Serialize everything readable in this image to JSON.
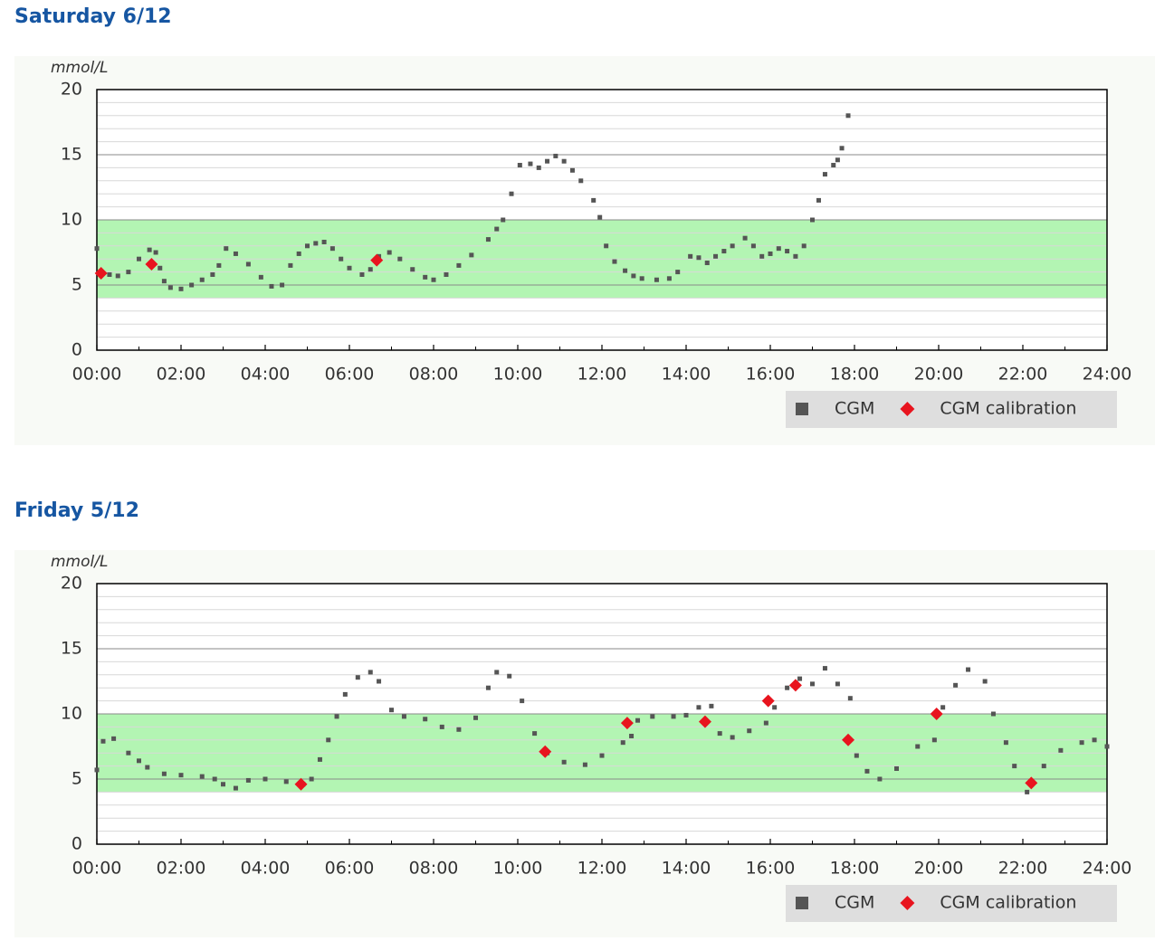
{
  "chart_data": [
    {
      "type": "scatter",
      "title": "Saturday 6/12",
      "y_label": "mmol/L",
      "xlim": [
        0,
        24
      ],
      "ylim": [
        0,
        20
      ],
      "xticks": [
        {
          "value": 0,
          "label": "00:00"
        },
        {
          "value": 2,
          "label": "02:00"
        },
        {
          "value": 4,
          "label": "04:00"
        },
        {
          "value": 6,
          "label": "06:00"
        },
        {
          "value": 8,
          "label": "08:00"
        },
        {
          "value": 10,
          "label": "10:00"
        },
        {
          "value": 12,
          "label": "12:00"
        },
        {
          "value": 14,
          "label": "14:00"
        },
        {
          "value": 16,
          "label": "16:00"
        },
        {
          "value": 18,
          "label": "18:00"
        },
        {
          "value": 20,
          "label": "20:00"
        },
        {
          "value": 22,
          "label": "22:00"
        },
        {
          "value": 24,
          "label": "24:00"
        }
      ],
      "yticks": [
        0,
        5,
        10,
        15,
        20
      ],
      "grid": true,
      "bands": [
        {
          "from": 4,
          "to": 10,
          "color": "#b3f5b3"
        }
      ],
      "legend": "bottom-right",
      "series": [
        {
          "name": "CGM",
          "color": "#555555",
          "marker": "square",
          "x": [
            0,
            0.1,
            0.3,
            0.5,
            0.75,
            1.0,
            1.25,
            1.4,
            1.5,
            1.6,
            1.75,
            2.0,
            2.25,
            2.5,
            2.75,
            2.9,
            3.07,
            3.3,
            3.6,
            3.9,
            4.15,
            4.4,
            4.6,
            4.8,
            5.0,
            5.2,
            5.4,
            5.6,
            5.8,
            6.0,
            6.3,
            6.5,
            6.7,
            6.95,
            7.2,
            7.5,
            7.8,
            8.0,
            8.3,
            8.6,
            8.9,
            9.3,
            9.5,
            9.65,
            9.85,
            10.05,
            10.3,
            10.5,
            10.7,
            10.9,
            11.1,
            11.3,
            11.5,
            11.8,
            11.95,
            12.1,
            12.3,
            12.55,
            12.75,
            12.95,
            13.3,
            13.6,
            13.8,
            14.1,
            14.3,
            14.5,
            14.7,
            14.9,
            15.1,
            15.4,
            15.6,
            15.8,
            16.0,
            16.2,
            16.4,
            16.6,
            16.8,
            17.0,
            17.15,
            17.3,
            17.5,
            17.6,
            17.7,
            17.85
          ],
          "values": [
            7.8,
            6.0,
            5.8,
            5.7,
            6.0,
            7.0,
            7.7,
            7.5,
            6.3,
            5.3,
            4.8,
            4.7,
            5.0,
            5.4,
            5.8,
            6.5,
            7.8,
            7.4,
            6.6,
            5.6,
            4.9,
            5.0,
            6.5,
            7.4,
            8.0,
            8.2,
            8.3,
            7.8,
            7.0,
            6.3,
            5.8,
            6.2,
            7.2,
            7.5,
            7.0,
            6.2,
            5.6,
            5.4,
            5.8,
            6.5,
            7.3,
            8.5,
            9.3,
            10.0,
            12.0,
            14.2,
            14.3,
            14.0,
            14.5,
            14.9,
            14.5,
            13.8,
            13.0,
            11.5,
            10.2,
            8.0,
            6.8,
            6.1,
            5.7,
            5.5,
            5.4,
            5.5,
            6.0,
            7.2,
            7.1,
            6.7,
            7.2,
            7.6,
            8.0,
            8.6,
            8.0,
            7.2,
            7.4,
            7.8,
            7.6,
            7.2,
            8.0,
            10.0,
            11.5,
            13.5,
            14.2,
            14.6,
            15.5,
            18.0
          ]
        },
        {
          "name": "CGM calibration",
          "color": "#e8141e",
          "marker": "diamond",
          "x": [
            0.1,
            1.3,
            6.65
          ],
          "values": [
            5.9,
            6.6,
            6.9
          ]
        }
      ]
    },
    {
      "type": "scatter",
      "title": "Friday 5/12",
      "y_label": "mmol/L",
      "xlim": [
        0,
        24
      ],
      "ylim": [
        0,
        20
      ],
      "xticks": [
        {
          "value": 0,
          "label": "00:00"
        },
        {
          "value": 2,
          "label": "02:00"
        },
        {
          "value": 4,
          "label": "04:00"
        },
        {
          "value": 6,
          "label": "06:00"
        },
        {
          "value": 8,
          "label": "08:00"
        },
        {
          "value": 10,
          "label": "10:00"
        },
        {
          "value": 12,
          "label": "12:00"
        },
        {
          "value": 14,
          "label": "14:00"
        },
        {
          "value": 16,
          "label": "16:00"
        },
        {
          "value": 18,
          "label": "18:00"
        },
        {
          "value": 20,
          "label": "20:00"
        },
        {
          "value": 22,
          "label": "22:00"
        },
        {
          "value": 24,
          "label": "24:00"
        }
      ],
      "yticks": [
        0,
        5,
        10,
        15,
        20
      ],
      "grid": true,
      "bands": [
        {
          "from": 4,
          "to": 10,
          "color": "#b3f5b3"
        }
      ],
      "legend": "bottom-right",
      "series": [
        {
          "name": "CGM",
          "color": "#555555",
          "marker": "square",
          "x": [
            0,
            0.15,
            0.4,
            0.75,
            1.0,
            1.2,
            1.6,
            2.0,
            2.5,
            2.8,
            3.0,
            3.3,
            3.6,
            4.0,
            4.5,
            4.9,
            5.1,
            5.3,
            5.5,
            5.7,
            5.9,
            6.2,
            6.5,
            6.7,
            7.0,
            7.3,
            7.8,
            8.2,
            8.6,
            9.0,
            9.3,
            9.5,
            9.8,
            10.1,
            10.4,
            10.7,
            11.1,
            11.6,
            12.0,
            12.5,
            12.7,
            12.85,
            13.2,
            13.7,
            14.0,
            14.3,
            14.6,
            14.8,
            15.1,
            15.5,
            15.9,
            16.1,
            16.4,
            16.7,
            17.0,
            17.3,
            17.6,
            17.9,
            18.05,
            18.3,
            18.6,
            19.0,
            19.5,
            19.9,
            20.1,
            20.4,
            20.7,
            21.1,
            21.3,
            21.6,
            21.8,
            22.1,
            22.5,
            22.9,
            23.4,
            23.7,
            24.0
          ],
          "values": [
            5.7,
            7.9,
            8.1,
            7.0,
            6.4,
            5.9,
            5.4,
            5.3,
            5.2,
            5.0,
            4.6,
            4.3,
            4.9,
            5.0,
            4.8,
            4.6,
            5.0,
            6.5,
            8.0,
            9.8,
            11.5,
            12.8,
            13.2,
            12.5,
            10.3,
            9.8,
            9.6,
            9.0,
            8.8,
            9.7,
            12.0,
            13.2,
            12.9,
            11.0,
            8.5,
            7.0,
            6.3,
            6.1,
            6.8,
            7.8,
            8.3,
            9.5,
            9.8,
            9.8,
            9.9,
            10.5,
            10.6,
            8.5,
            8.2,
            8.7,
            9.3,
            10.5,
            12.0,
            12.7,
            12.3,
            13.5,
            12.3,
            11.2,
            6.8,
            5.6,
            5.0,
            5.8,
            7.5,
            8.0,
            10.5,
            12.2,
            13.4,
            12.5,
            10.0,
            7.8,
            6.0,
            4.0,
            6.0,
            7.2,
            7.8,
            8.0,
            7.5
          ]
        },
        {
          "name": "CGM calibration",
          "color": "#e8141e",
          "marker": "diamond",
          "x": [
            4.85,
            10.65,
            12.6,
            14.45,
            15.95,
            16.6,
            17.85,
            19.95,
            22.2
          ],
          "values": [
            4.6,
            7.1,
            9.3,
            9.4,
            11.0,
            12.2,
            8.0,
            10.0,
            4.7
          ]
        }
      ]
    }
  ]
}
